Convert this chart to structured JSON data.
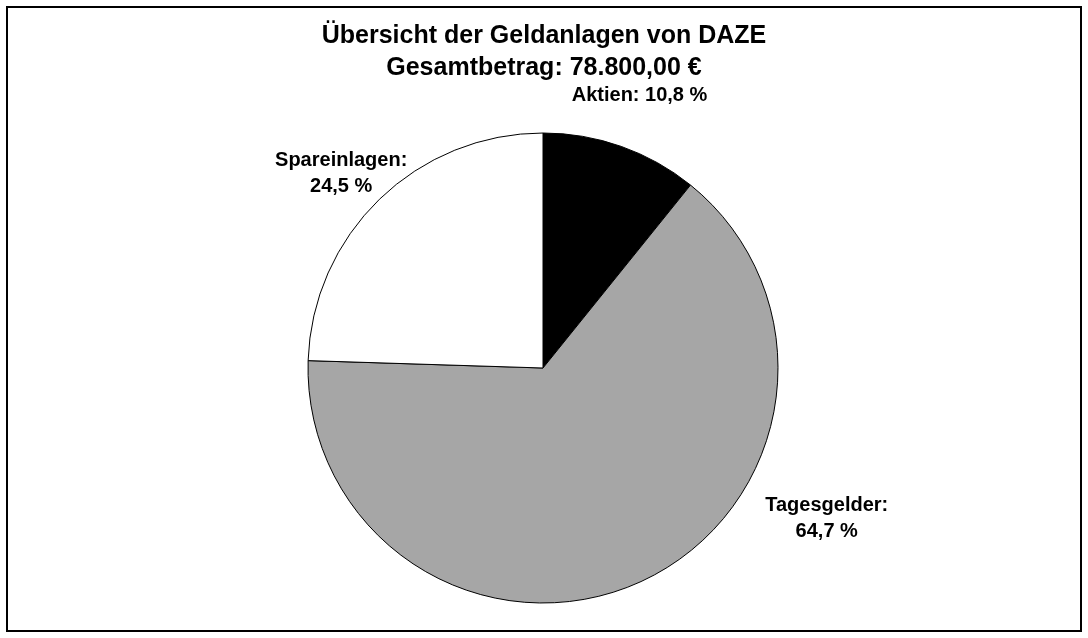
{
  "chart_data": {
    "type": "pie",
    "title": "Übersicht der Geldanlagen von DAZE",
    "subtitle": "Gesamtbetrag: 78.800,00 €",
    "values": [
      10.8,
      64.7,
      24.5
    ],
    "colors": [
      "#000000",
      "#a6a6a6",
      "#ffffff"
    ],
    "value_labels": [
      "Aktien: 10,8 %",
      "Tagesgelder: 64,7 %",
      "Spareinlagen: 24,5 %"
    ]
  }
}
